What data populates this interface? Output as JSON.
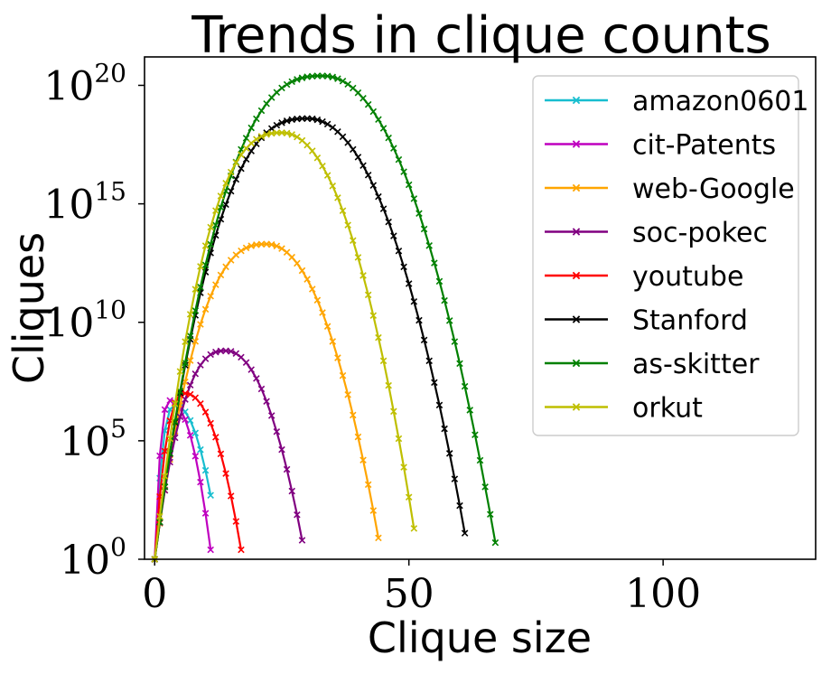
{
  "chart_data": {
    "type": "line",
    "title": "Trends in clique counts",
    "xlabel": "Clique size",
    "ylabel": "Cliques",
    "xscale": "linear",
    "yscale": "log",
    "xlim": [
      -2,
      130
    ],
    "ylim_log10_exponent": [
      0,
      21.2
    ],
    "x_ticks": [
      {
        "value": 0,
        "label": "0"
      },
      {
        "value": 50,
        "label": "50"
      },
      {
        "value": 100,
        "label": "100"
      }
    ],
    "y_ticks": [
      {
        "value": 1,
        "base": "10",
        "exp": "0"
      },
      {
        "value": 100000,
        "base": "10",
        "exp": "5"
      },
      {
        "value": 10000000000,
        "base": "10",
        "exp": "10"
      },
      {
        "value": 1000000000000000,
        "base": "10",
        "exp": "15"
      },
      {
        "value": 100000000000000000000,
        "base": "10",
        "exp": "20"
      }
    ],
    "grid": false,
    "legend_position": "top-right",
    "marker": "x",
    "series": [
      {
        "name": "amazon0601",
        "color": "#17becf",
        "max_size": 11,
        "peak_size": 4,
        "peak_log10": 6.5,
        "end_log10": 2.7
      },
      {
        "name": "cit-Patents",
        "color": "#bf00bf",
        "max_size": 11,
        "peak_size": 3,
        "peak_log10": 6.7,
        "end_log10": 0.4
      },
      {
        "name": "web-Google",
        "color": "#ffa500",
        "max_size": 44,
        "peak_size": 22,
        "peak_log10": 13.3,
        "end_log10": 0.9
      },
      {
        "name": "soc-pokec",
        "color": "#800080",
        "max_size": 29,
        "peak_size": 14,
        "peak_log10": 8.8,
        "end_log10": 0.8
      },
      {
        "name": "youtube",
        "color": "#ff0000",
        "max_size": 17,
        "peak_size": 6,
        "peak_log10": 7.0,
        "end_log10": 0.4
      },
      {
        "name": "Stanford",
        "color": "#000000",
        "max_size": 61,
        "peak_size": 30,
        "peak_log10": 18.6,
        "end_log10": 1.1
      },
      {
        "name": "as-skitter",
        "color": "#008000",
        "max_size": 67,
        "peak_size": 33,
        "peak_log10": 20.4,
        "end_log10": 0.7
      },
      {
        "name": "orkut",
        "color": "#bfbf00",
        "max_size": 51,
        "peak_size": 25,
        "peak_log10": 18.0,
        "end_log10": 1.3
      }
    ]
  }
}
